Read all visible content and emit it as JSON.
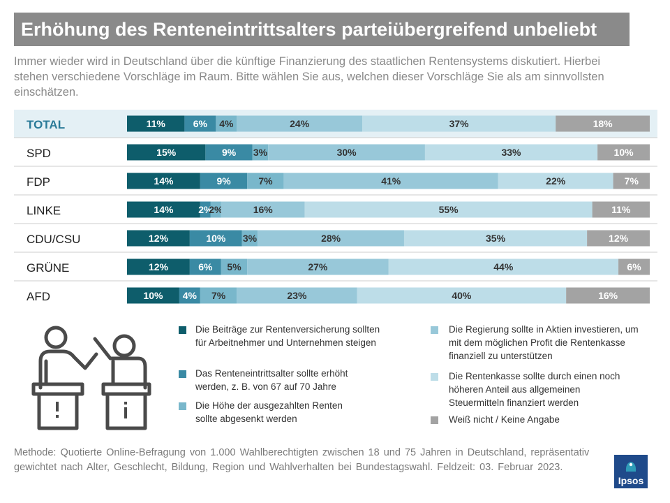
{
  "title": "Erhöhung des Renteneintrittsalters parteiübergreifend unbeliebt",
  "intro": "Immer wieder wird in Deutschland über die künftige Finanzierung des staatlichen Rentensystems diskutiert. Hierbei stehen verschiedene Vorschläge im Raum. Bitte wählen Sie aus, welchen dieser Vorschläge Sie als am sinnvollsten einschätzen.",
  "method": "Methode: Quotierte Online-Befragung von 1.000 Wahlberechtigten zwischen 18 und 75 Jahren in Deutschland, repräsentativ gewichtet nach Alter, Geschlecht, Bildung, Region und Wahlverhalten bei Bundestagswahl. Feldzeit: 03. Februar 2023.",
  "logo": "Ipsos",
  "colors": {
    "highlight_row": "#e4f0f5",
    "total_label": "#2a7a98",
    "logo": "#1f4a8a",
    "title_bg": "#8a8a8a"
  },
  "chart_data": {
    "type": "bar",
    "orientation": "horizontal",
    "stacked": true,
    "unit": "%",
    "categories": [
      "TOTAL",
      "SPD",
      "FDP",
      "LINKE",
      "CDU/CSU",
      "GRÜNE",
      "AFD"
    ],
    "highlight_category": "TOTAL",
    "series": [
      {
        "name": "Die Beiträge zur Rentenversicherung sollten für Arbeitnehmer und Unternehmen steigen",
        "color": "#0e5d6b",
        "values": [
          11,
          15,
          14,
          14,
          12,
          12,
          10
        ]
      },
      {
        "name": "Das Renteneintrittsalter sollte erhöht werden, z. B. von 67 auf 70 Jahre",
        "color": "#3a8aa4",
        "values": [
          6,
          9,
          9,
          2,
          10,
          6,
          4
        ]
      },
      {
        "name": "Die Höhe der ausgezahlten Renten sollte abgesenkt werden",
        "color": "#79b7cb",
        "values": [
          4,
          3,
          7,
          2,
          3,
          5,
          7
        ]
      },
      {
        "name": "Die Regierung sollte in Aktien investieren, um mit dem möglichen Profit die Rentenkasse finanziell zu unterstützen",
        "color": "#98c8d9",
        "values": [
          24,
          30,
          41,
          16,
          28,
          27,
          23
        ]
      },
      {
        "name": "Die Rentenkasse sollte durch einen noch höheren Anteil aus allgemeinen Steuermitteln finanziert werden",
        "color": "#bddde8",
        "values": [
          37,
          33,
          22,
          55,
          35,
          44,
          40
        ]
      },
      {
        "name": "Weiß nicht / Keine Angabe",
        "color": "#a3a3a3",
        "values": [
          18,
          10,
          7,
          11,
          12,
          6,
          16
        ]
      }
    ],
    "legend_position": "bottom"
  }
}
